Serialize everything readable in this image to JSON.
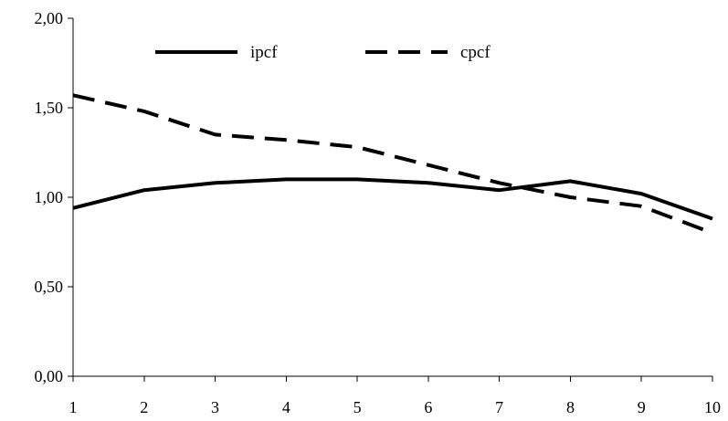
{
  "chart_data": {
    "type": "line",
    "x": [
      1,
      2,
      3,
      4,
      5,
      6,
      7,
      8,
      9,
      10
    ],
    "x_tick_labels": [
      "1",
      "2",
      "3",
      "4",
      "5",
      "6",
      "7",
      "8",
      "9",
      "10"
    ],
    "y_tick_labels": [
      "0,00",
      "0,50",
      "1,00",
      "1,50",
      "2,00"
    ],
    "y_ticks": [
      0,
      0.5,
      1.0,
      1.5,
      2.0
    ],
    "ylim": [
      0,
      2
    ],
    "grid": false,
    "legend_position": "top",
    "series": [
      {
        "name": "ipcf",
        "style": "solid",
        "color": "#000000",
        "values": [
          0.94,
          1.04,
          1.08,
          1.1,
          1.1,
          1.08,
          1.04,
          1.09,
          1.02,
          0.88
        ]
      },
      {
        "name": "cpcf",
        "style": "dashed",
        "color": "#000000",
        "values": [
          1.57,
          1.48,
          1.35,
          1.32,
          1.28,
          1.18,
          1.08,
          1.0,
          0.95,
          0.8
        ]
      }
    ]
  }
}
